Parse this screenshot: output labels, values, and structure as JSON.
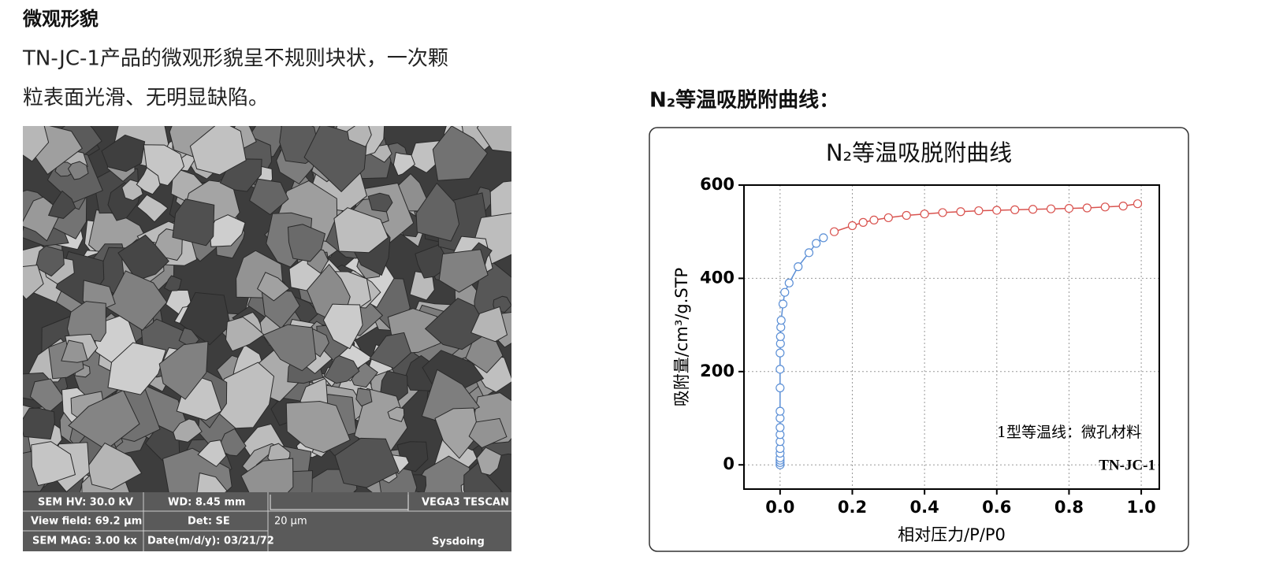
{
  "header": {
    "title": "微观形貌"
  },
  "paragraph": {
    "lines": [
      "TN-JC-1产品的微观形貌呈不规则块状，一次颗",
      "粒表面光滑、无明显缺陷。"
    ]
  },
  "sem": {
    "info": [
      "SEM HV: 30.0 kV",
      "WD: 8.45 mm",
      "VEGA3 TESCAN",
      "View field: 69.2 μm",
      "Det: SE",
      "20 μm",
      "SEM MAG: 3.00 kx",
      "Date(m/d/y): 03/21/72",
      "Sysdoing"
    ]
  },
  "chart_heading": "N₂等温吸脱附曲线：",
  "chart_data": {
    "type": "scatter",
    "title": "N₂等温吸脱附曲线",
    "x_label": "相对压力/P/P0",
    "y_label": "吸附量/cm³/g.STP",
    "annotations": [
      "1型等温线：微孔材料",
      "TN-JC-1"
    ],
    "xlim": [
      -0.1,
      1.05
    ],
    "ylim": [
      -52,
      600
    ],
    "xticks": [
      {
        "value": 0,
        "label": "0.0"
      },
      {
        "value": 0.2,
        "label": "0.2"
      },
      {
        "value": 0.4,
        "label": "0.4"
      },
      {
        "value": 0.6,
        "label": "0.6"
      },
      {
        "value": 0.8,
        "label": "0.8"
      },
      {
        "value": 1,
        "label": "1.0"
      }
    ],
    "yticks": [
      0,
      200,
      400,
      600
    ],
    "grid": true,
    "series": [
      {
        "color": "#5b8fd6",
        "x": [
          0,
          0,
          0,
          0,
          0,
          0,
          0,
          0,
          0,
          0,
          0,
          0,
          0,
          0,
          0.001,
          0.001,
          0.002,
          0.003,
          0.008,
          0.013,
          0.025,
          0.05,
          0.08,
          0.1,
          0.12
        ],
        "values": [
          0,
          5,
          10,
          15,
          25,
          35,
          50,
          65,
          80,
          100,
          115,
          165,
          205,
          240,
          260,
          275,
          295,
          310,
          345,
          370,
          390,
          425,
          455,
          475,
          487
        ]
      },
      {
        "color": "#d9534f",
        "x": [
          0.15,
          0.2,
          0.23,
          0.26,
          0.3,
          0.35,
          0.4,
          0.45,
          0.5,
          0.55,
          0.6,
          0.65,
          0.7,
          0.75,
          0.8,
          0.85,
          0.9,
          0.95,
          0.99
        ],
        "values": [
          500,
          513,
          520,
          525,
          530,
          535,
          538,
          541,
          543,
          545,
          546,
          547,
          548,
          549,
          550,
          551,
          553,
          555,
          560
        ]
      }
    ]
  }
}
